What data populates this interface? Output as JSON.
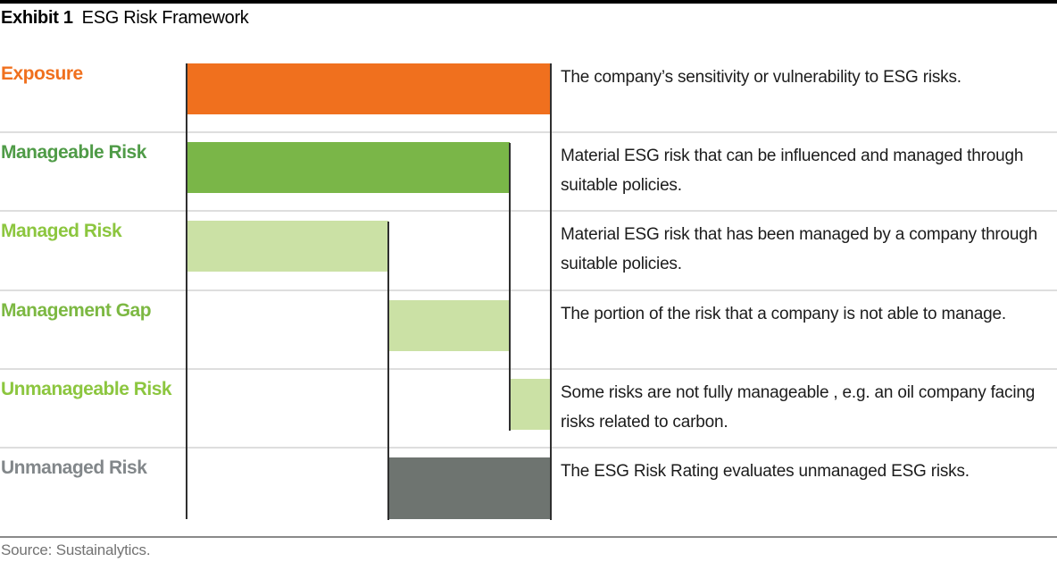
{
  "title": {
    "exhibit": "Exhibit 1",
    "text": "ESG Risk Framework"
  },
  "source": "Source: Sustainalytics.",
  "colors": {
    "accent_orange": "#F0701E",
    "mid_green": "#7AB648",
    "light_green": "#CBE1A5",
    "bar_gray": "#6E7470",
    "separator": "#dedede",
    "reference_line": "#2f2f2f",
    "description_text": "#1c1c1c",
    "source_text": "#737373"
  },
  "chart_data": {
    "type": "bar",
    "title": "ESG Risk Framework",
    "orientation": "horizontal",
    "xlabel": "",
    "ylabel": "",
    "xlim": [
      0,
      100
    ],
    "axis_visible": false,
    "grid": false,
    "legend": "none",
    "units": "percent of total exposure (estimated from bar lengths)",
    "rows": [
      {
        "label": "Exposure",
        "label_color": "#F0701E",
        "bar_color": "#F0701E",
        "start": 0,
        "end": 100,
        "description": "The company’s sensitivity or vulnerability to ESG risks."
      },
      {
        "label": "Manageable Risk",
        "label_color": "#4F9B47",
        "bar_color": "#7AB648",
        "start": 0,
        "end": 88.7,
        "description": "Material ESG risk that can be influenced and managed through suitable policies."
      },
      {
        "label": "Managed Risk",
        "label_color": "#8CC63F",
        "bar_color": "#CBE1A5",
        "start": 0,
        "end": 55.4,
        "description": "Material ESG risk that has been managed by a company through suitable policies."
      },
      {
        "label": "Management Gap",
        "label_color": "#7CB842",
        "bar_color": "#CBE1A5",
        "start": 55.4,
        "end": 88.7,
        "description": "The portion of the risk that a company is not able to manage."
      },
      {
        "label": "Unmanageable Risk",
        "label_color": "#8CC63F",
        "bar_color": "#CBE1A5",
        "start": 88.7,
        "end": 100,
        "description": "Some risks are not fully manageable , e.g. an oil company facing  risks related to carbon."
      },
      {
        "label": "Unmanaged Risk",
        "label_color": "#82878A",
        "bar_color": "#6E7470",
        "start": 55.4,
        "end": 100,
        "description": "The ESG Risk Rating evaluates unmanaged ESG risks."
      }
    ]
  }
}
